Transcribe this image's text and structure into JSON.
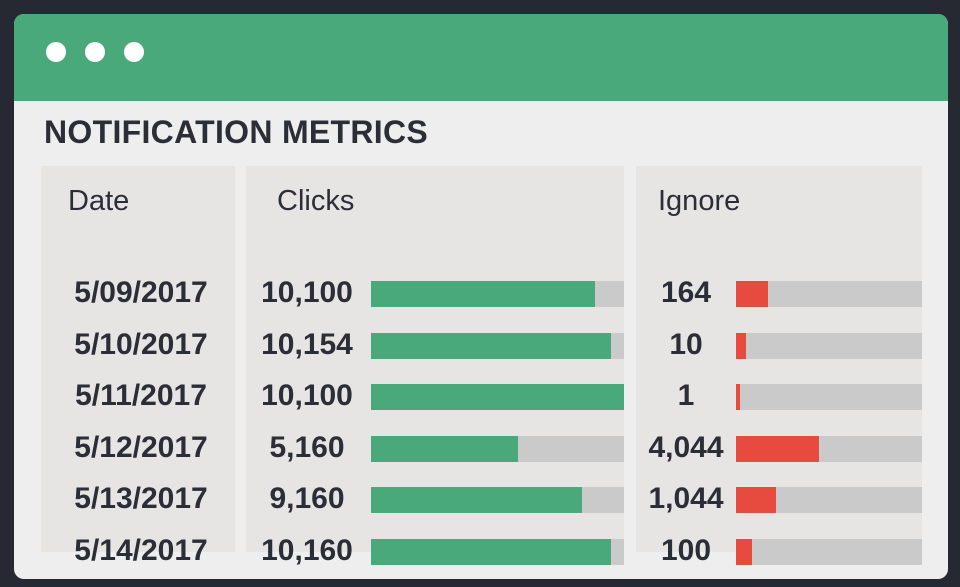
{
  "window": {
    "title": "NOTIFICATION METRICS"
  },
  "colors": {
    "titlebar": "#4aa97a",
    "clicks_bar": "#4aa97a",
    "ignore_bar": "#e74a3e",
    "track": "#cbcaca"
  },
  "columns": {
    "date": "Date",
    "clicks": "Clicks",
    "ignore": "Ignore"
  },
  "rows": [
    {
      "date": "5/09/2017",
      "clicks": "10,100",
      "clicks_fill": 0.885,
      "ignore": "164",
      "ignore_fill": 0.17
    },
    {
      "date": "5/10/2017",
      "clicks": "10,154",
      "clicks_fill": 0.95,
      "ignore": "10",
      "ignore_fill": 0.055
    },
    {
      "date": "5/11/2017",
      "clicks": "10,100",
      "clicks_fill": 1.0,
      "ignore": "1",
      "ignore_fill": 0.02
    },
    {
      "date": "5/12/2017",
      "clicks": "5,160",
      "clicks_fill": 0.58,
      "ignore": "4,044",
      "ignore_fill": 0.445
    },
    {
      "date": "5/13/2017",
      "clicks": "9,160",
      "clicks_fill": 0.835,
      "ignore": "1,044",
      "ignore_fill": 0.215
    },
    {
      "date": "5/14/2017",
      "clicks": "10,160",
      "clicks_fill": 0.95,
      "ignore": "100",
      "ignore_fill": 0.085
    }
  ]
}
